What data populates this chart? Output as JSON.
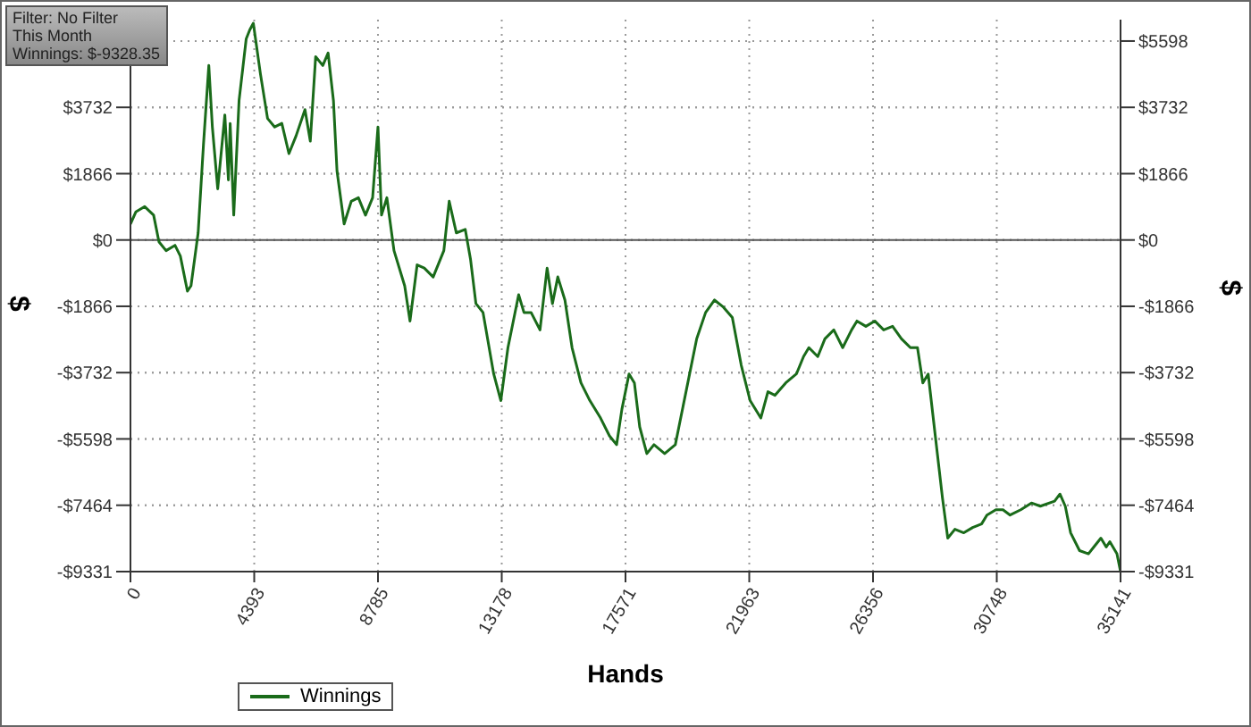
{
  "chart_data": {
    "type": "line",
    "xlabel": "Hands",
    "ylabel": "$",
    "y2label": "$",
    "annotations": [
      "Filter: No Filter",
      "This Month",
      "Winnings: $-9328.35"
    ],
    "x": [
      0,
      190,
      506,
      822,
      1011,
      1264,
      1580,
      1770,
      2022,
      2149,
      2402,
      2591,
      2781,
      2907,
      3097,
      3350,
      3476,
      3539,
      3666,
      3855,
      4108,
      4234,
      4361,
      4614,
      4866,
      5119,
      5372,
      5625,
      5878,
      6194,
      6383,
      6573,
      6826,
      7015,
      7205,
      7331,
      7584,
      7837,
      8090,
      8342,
      8595,
      8785,
      8911,
      9101,
      9354,
      9733,
      9922,
      10175,
      10428,
      10744,
      11123,
      11313,
      11566,
      11882,
      12071,
      12261,
      12514,
      12893,
      13146,
      13398,
      13778,
      13967,
      14220,
      14536,
      14789,
      14978,
      15168,
      15421,
      15674,
      15990,
      16306,
      16685,
      17001,
      17254,
      17443,
      17696,
      17886,
      18075,
      18328,
      18581,
      18960,
      19339,
      19718,
      20098,
      20414,
      20730,
      21046,
      21362,
      21678,
      21994,
      22373,
      22626,
      22878,
      23258,
      23637,
      23890,
      24079,
      24395,
      24648,
      24964,
      25280,
      25596,
      25786,
      26102,
      26418,
      26734,
      27050,
      27366,
      27682,
      27934,
      28124,
      28314,
      28566,
      28819,
      29009,
      29262,
      29578,
      29894,
      30210,
      30399,
      30715,
      30968,
      31221,
      31600,
      31979,
      32295,
      32801,
      32990,
      33180,
      33370,
      33686,
      34002,
      34191,
      34444,
      34634,
      34760,
      35013,
      35141
    ],
    "series": [
      {
        "name": "Winnings",
        "color": "#1a6b1a",
        "values": [
          450,
          790,
          940,
          700,
          -50,
          -300,
          -150,
          -450,
          -1440,
          -1290,
          200,
          2680,
          4910,
          3180,
          1440,
          3520,
          1690,
          3280,
          700,
          3930,
          5660,
          5910,
          6100,
          4670,
          3420,
          3180,
          3280,
          2430,
          2930,
          3670,
          2780,
          5160,
          4910,
          5260,
          3920,
          1940,
          450,
          1090,
          1190,
          700,
          1190,
          3180,
          700,
          1190,
          -300,
          -1290,
          -2280,
          -700,
          -790,
          -1040,
          -300,
          1090,
          200,
          300,
          -550,
          -1790,
          -2040,
          -3770,
          -4520,
          -3030,
          -1540,
          -2040,
          -2040,
          -2530,
          -790,
          -1790,
          -1040,
          -1690,
          -3030,
          -4020,
          -4520,
          -5010,
          -5510,
          -5760,
          -4760,
          -3770,
          -4020,
          -5260,
          -6010,
          -5760,
          -6010,
          -5760,
          -4270,
          -2780,
          -2040,
          -1690,
          -1890,
          -2180,
          -3520,
          -4520,
          -5010,
          -4270,
          -4370,
          -4020,
          -3770,
          -3280,
          -3030,
          -3280,
          -2780,
          -2530,
          -3030,
          -2530,
          -2280,
          -2430,
          -2280,
          -2530,
          -2430,
          -2780,
          -3030,
          -3030,
          -4020,
          -3770,
          -5510,
          -7250,
          -8390,
          -8140,
          -8240,
          -8090,
          -7990,
          -7740,
          -7590,
          -7590,
          -7740,
          -7590,
          -7400,
          -7490,
          -7350,
          -7150,
          -7490,
          -8240,
          -8740,
          -8830,
          -8640,
          -8390,
          -8640,
          -8490,
          -8830,
          -9330
        ]
      }
    ],
    "xlim": [
      0,
      35141
    ],
    "xticks": [
      0,
      4393,
      8785,
      13178,
      17571,
      21963,
      26356,
      30748,
      35141
    ],
    "ylim": [
      -9331,
      6200
    ],
    "yticks": [
      {
        "value": -9331,
        "label": "-$9331"
      },
      {
        "value": -7464,
        "label": "-$7464"
      },
      {
        "value": -5598,
        "label": "-$5598"
      },
      {
        "value": -3732,
        "label": "-$3732"
      },
      {
        "value": -1866,
        "label": "-$1866"
      },
      {
        "value": 0,
        "label": "$0"
      },
      {
        "value": 1866,
        "label": "$1866"
      },
      {
        "value": 3732,
        "label": "$3732"
      }
    ],
    "y2lim": [
      -9331,
      6200
    ],
    "y2ticks": [
      {
        "value": -9331,
        "label": "-$9331"
      },
      {
        "value": -7464,
        "label": "-$7464"
      },
      {
        "value": -5598,
        "label": "-$5598"
      },
      {
        "value": -3732,
        "label": "-$3732"
      },
      {
        "value": -1866,
        "label": "-$1866"
      },
      {
        "value": 0,
        "label": "$0"
      },
      {
        "value": 1866,
        "label": "$1866"
      },
      {
        "value": 3732,
        "label": "$3732"
      },
      {
        "value": 5598,
        "label": "$5598"
      }
    ],
    "ref_lines": [
      {
        "axis": "y",
        "value": 0,
        "color": "#555555",
        "line_style": "solid"
      }
    ],
    "grid": true,
    "legend": "bottom left",
    "marker": "none",
    "line_style": "solid"
  }
}
